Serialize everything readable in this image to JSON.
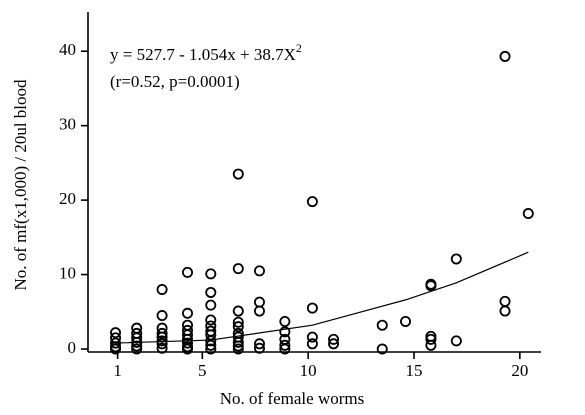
{
  "chart_data": {
    "type": "scatter",
    "xlabel": "No. of female worms",
    "ylabel": "No. of mf(x1,000) / 20ul blood",
    "annotations": [
      {
        "text": "y = 527.7 - 1.054x + 38.7X",
        "sup": "2"
      },
      {
        "text": "(r=0.52, p=0.0001)"
      }
    ],
    "xlim": [
      -0.4,
      21.0
    ],
    "xticks": [
      1,
      5,
      10,
      15,
      20
    ],
    "ylim": [
      -0.4,
      45
    ],
    "yticks": [
      0,
      10,
      20,
      30,
      40
    ],
    "color": "#000000",
    "series": [
      {
        "x": [
          0.9,
          0.9,
          0.9,
          0.9,
          0.9,
          1.9,
          1.9,
          1.9,
          1.9,
          1.9,
          1.9,
          3.1,
          3.1,
          3.1,
          3.1,
          3.1,
          3.1,
          3.1,
          3.1,
          4.3,
          4.3,
          4.3,
          4.3,
          4.3,
          4.3,
          4.3,
          4.3,
          4.3,
          5.4,
          5.4,
          5.4,
          5.4,
          5.4,
          5.4,
          5.4,
          5.4,
          5.4,
          5.4,
          6.7,
          6.7,
          6.7,
          6.7,
          6.7,
          6.7,
          6.7,
          6.7,
          6.7,
          6.7,
          7.7,
          7.7,
          7.7,
          7.7,
          7.7,
          8.9,
          8.9,
          8.9,
          8.9,
          8.9,
          10.2,
          10.2,
          10.2,
          10.2,
          11.2,
          11.2,
          13.5,
          13.5,
          14.6,
          15.8,
          15.8,
          15.8,
          15.8,
          15.8,
          17.0,
          17.0,
          19.3,
          19.3,
          19.3,
          20.4
        ],
        "values": [
          2.2,
          1.5,
          0.8,
          0.3,
          0,
          2.8,
          2.1,
          1.5,
          0.9,
          0.4,
          0,
          8.0,
          4.5,
          2.8,
          2.1,
          1.6,
          1.1,
          0.7,
          0.1,
          10.3,
          4.8,
          3.2,
          2.5,
          1.9,
          1.3,
          0.8,
          0.3,
          0,
          10.1,
          7.6,
          5.9,
          3.9,
          3.1,
          2.4,
          1.9,
          1.1,
          0.5,
          0,
          23.5,
          10.8,
          5.1,
          3.6,
          3.0,
          2.1,
          1.6,
          0.9,
          0.4,
          0,
          10.5,
          6.3,
          5.1,
          0.7,
          0.1,
          3.7,
          2.3,
          1.3,
          0.5,
          0,
          19.8,
          5.5,
          1.6,
          0.7,
          1.3,
          0.7,
          3.2,
          0,
          3.7,
          8.7,
          8.5,
          1.7,
          1.3,
          0.5,
          12.1,
          1.1,
          39.3,
          6.4,
          5.1,
          18.2
        ]
      }
    ],
    "fit": {
      "x": [
        0.9,
        5.4,
        10.2,
        14.6,
        17.0,
        20.4
      ],
      "values": [
        0.8,
        1.2,
        3.2,
        6.6,
        8.9,
        13.0
      ]
    }
  }
}
